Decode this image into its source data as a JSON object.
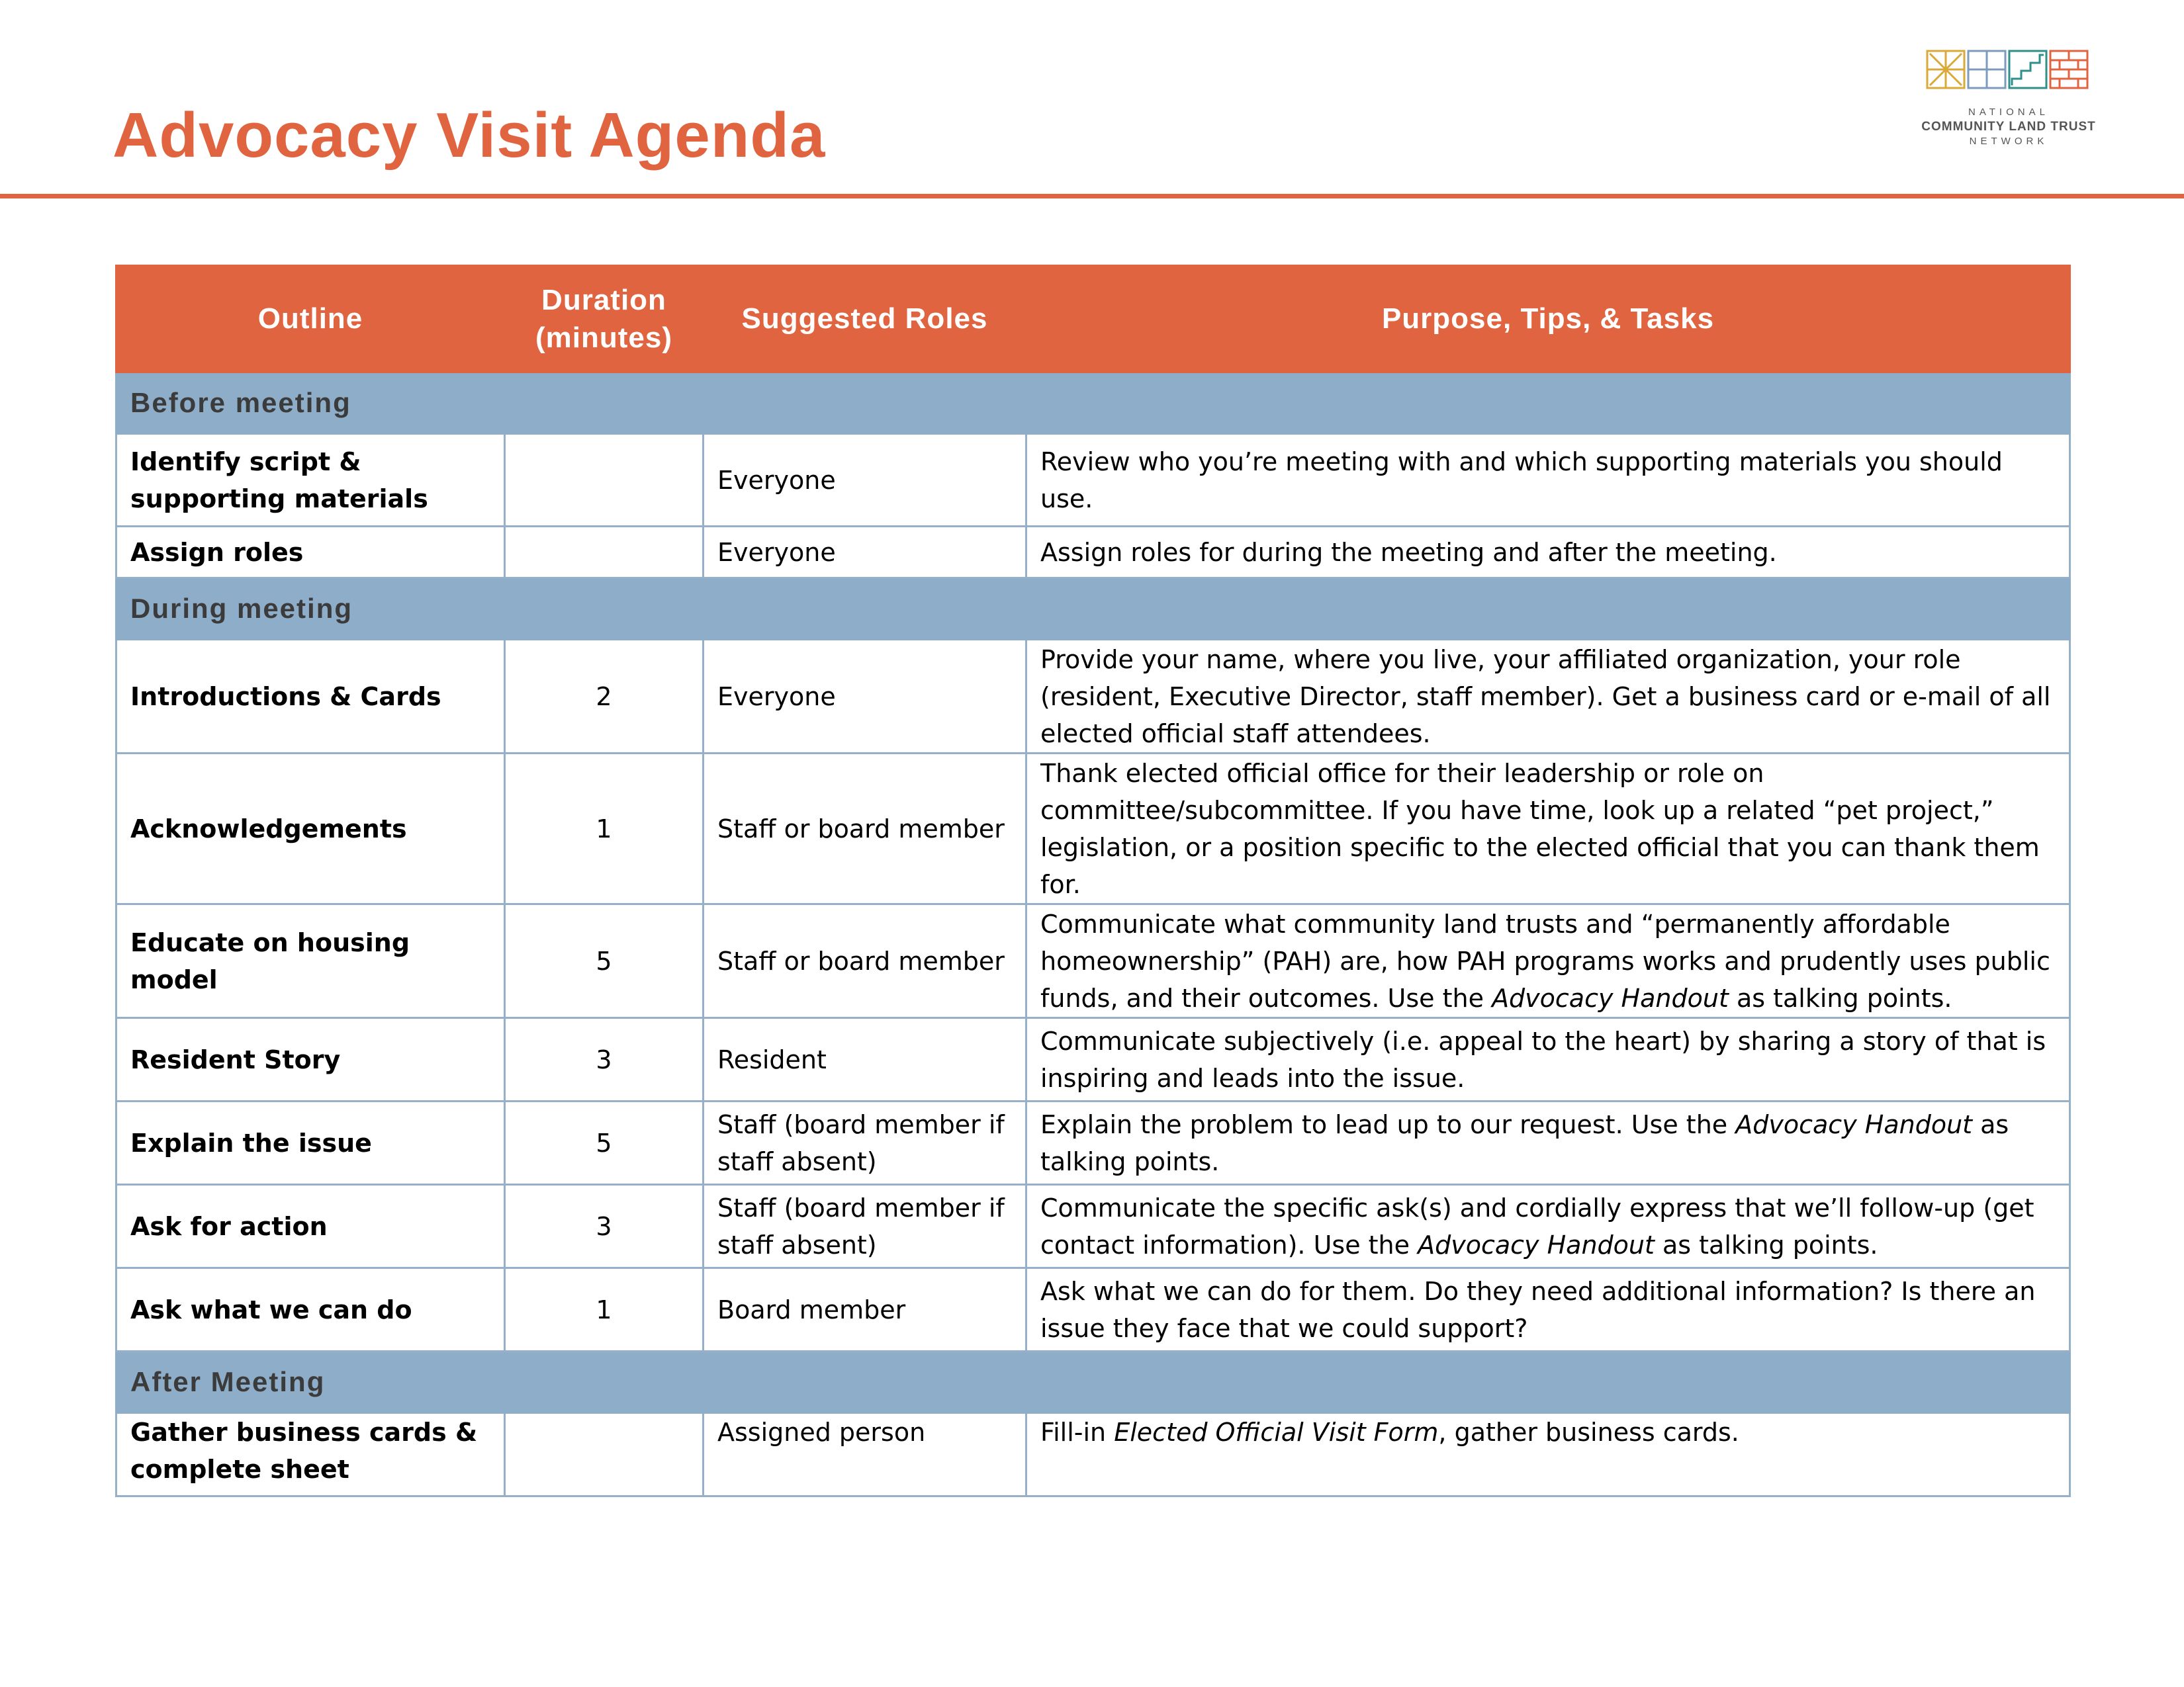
{
  "header": {
    "title": "Advocacy Visit Agenda",
    "logo": {
      "line1": "NATIONAL",
      "line2": "COMMUNITY LAND TRUST",
      "line3": "NETWORK"
    }
  },
  "colors": {
    "accent": "#e0643f",
    "section_band": "#8eadc9",
    "grid_line": "#97b0c9"
  },
  "table": {
    "columns": [
      {
        "label": "Outline"
      },
      {
        "label": "Duration (minutes)"
      },
      {
        "label": "Suggested Roles"
      },
      {
        "label": "Purpose, Tips,  & Tasks"
      }
    ],
    "sections": [
      {
        "title": "Before meeting",
        "rows": [
          {
            "outline": "Identify script & supporting materials",
            "duration": "",
            "roles": "Everyone",
            "purpose": "Review who you’re meeting with and which supporting materials you should use."
          },
          {
            "outline": "Assign roles",
            "duration": "",
            "roles": "Everyone",
            "purpose": "Assign roles for during the meeting and after the meeting."
          }
        ]
      },
      {
        "title": "During meeting",
        "rows": [
          {
            "outline": "Introductions & Cards",
            "duration": "2",
            "roles": "Everyone",
            "purpose": "Provide your name, where you live, your affiliated organization, your role (resident, Executive Director, staff member).  Get a business card or e-mail of all elected official staff attendees."
          },
          {
            "outline": "Acknowledgements",
            "duration": "1",
            "roles": "Staff or board member",
            "purpose": "Thank elected official office for their leadership or role on committee/subcommittee. If you have time, look up a related “pet project,” legislation, or a position specific to the elected official that you can thank them for."
          },
          {
            "outline": "Educate on housing model",
            "duration": "5",
            "roles": "Staff or board member",
            "purpose_a": "Communicate what community land trusts and “permanently affordable homeownership” (PAH) are, how PAH programs works and prudently uses public funds, and their outcomes. Use the ",
            "purpose_em": "Advocacy Handout",
            "purpose_b": " as talking points."
          },
          {
            "outline": "Resident Story",
            "duration": "3",
            "roles": "Resident",
            "purpose": "Communicate subjectively (i.e. appeal to the heart) by sharing a story of that is inspiring and leads into the issue."
          },
          {
            "outline": "Explain the issue",
            "duration": "5",
            "roles": "Staff (board member if staff absent)",
            "purpose_a": "Explain the problem to lead up to our request.  Use the ",
            "purpose_em": "Advocacy Handout",
            "purpose_b": " as talking points."
          },
          {
            "outline": "Ask for action",
            "duration": "3",
            "roles": "Staff (board member if staff absent)",
            "purpose_a": "Communicate the specific ask(s) and cordially express that we’ll follow-up (get contact information).  Use the ",
            "purpose_em": "Advocacy Handout",
            "purpose_b": "  as talking points."
          },
          {
            "outline": "Ask what we can do",
            "duration": "1",
            "roles": "Board member",
            "purpose": "Ask what we can do for them. Do they need additional information? Is there an issue they face that we could support?"
          }
        ]
      },
      {
        "title": "After Meeting",
        "rows": [
          {
            "outline": "Gather business cards & complete sheet",
            "duration": "",
            "roles": "Assigned person",
            "purpose_a": "Fill-in ",
            "purpose_em": "Elected Official Visit Form",
            "purpose_b": ", gather business cards."
          }
        ]
      }
    ]
  }
}
